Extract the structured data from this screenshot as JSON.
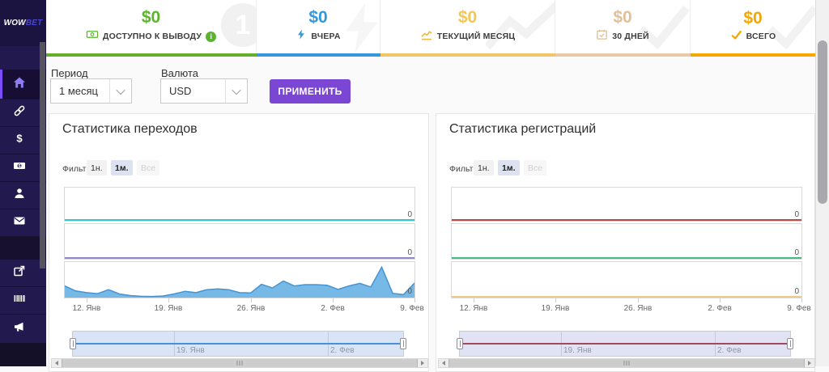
{
  "logo": {
    "primary": "WOW",
    "secondary": "BET"
  },
  "sidebar": {
    "items": [
      {
        "icon": "home-icon",
        "active": true
      },
      {
        "icon": "link-icon",
        "active": false
      },
      {
        "icon": "dollar-icon",
        "active": false
      },
      {
        "icon": "banknote-icon",
        "active": false
      },
      {
        "icon": "person-icon",
        "active": false
      },
      {
        "icon": "envelope-icon",
        "active": false
      },
      {
        "icon": "external-link-icon",
        "active": false
      },
      {
        "icon": "barcode-icon",
        "active": false
      },
      {
        "icon": "megaphone-icon",
        "active": false
      }
    ]
  },
  "topbar": {
    "cards": [
      {
        "value": "$0",
        "label": "ДОСТУПНО К ВЫВОДУ",
        "accent": "#5cb32e",
        "underline": "#66ad2b",
        "icon": "banknote-icon",
        "has_info_icon": true
      },
      {
        "value": "$0",
        "label": "ВЧЕРА",
        "accent": "#3598db",
        "underline": "#3598db",
        "icon": "bolt-icon",
        "has_info_icon": false
      },
      {
        "value": "$0",
        "label": "ТЕКУЩИЙ МЕСЯЦ",
        "accent": "#f4c654",
        "underline": "#f2c666",
        "icon": "chart-line-icon",
        "has_info_icon": false
      },
      {
        "value": "$0",
        "label": "30 ДНЕЙ",
        "accent": "#dfc09a",
        "underline": "#e8cba4",
        "icon": "calendar-check-icon",
        "has_info_icon": false
      },
      {
        "value": "$0",
        "label": "ВСЕГО",
        "accent": "#f5a700",
        "underline": "#f7a800",
        "icon": "check-icon",
        "has_info_icon": false
      }
    ]
  },
  "filters": {
    "period_label": "Период",
    "period_value": "1 месяц",
    "currency_label": "Валюта",
    "currency_value": "USD",
    "apply_label": "ПРИМЕНИТЬ"
  },
  "chart_data": [
    {
      "type": "area",
      "title": "Статистика переходов",
      "range_selector": {
        "label": "Фильтр",
        "buttons": [
          "1н.",
          "1м.",
          "Все"
        ],
        "selected": "1м.",
        "disabled": "Все"
      },
      "x_axis": {
        "tick_labels": [
          "12. Янв",
          "19. Янв",
          "26. Янв",
          "2. Фев",
          "9. Фев"
        ],
        "range": [
          "10. Янв",
          "9. Фев"
        ]
      },
      "panes": [
        {
          "name": "series-1",
          "type": "line",
          "color": "#3ac6c2",
          "y_label": "0",
          "values": [
            0
          ],
          "note": "flat line at 0"
        },
        {
          "name": "series-2",
          "type": "line",
          "color": "#9488cf",
          "y_label": "0",
          "values": [
            0
          ],
          "note": "flat line at 0"
        },
        {
          "name": "series-3",
          "type": "area",
          "color": "#5fade2",
          "y_label": "0",
          "y_scale": "relative units 0-10, axis shows only 0",
          "values": [
            3.5,
            2.0,
            1.5,
            1.2,
            2.4,
            1.1,
            0.6,
            0.4,
            0.35,
            0.5,
            1.1,
            1.9,
            1.5,
            2.4,
            2.6,
            2.4,
            1.5,
            1.4,
            4.0,
            2.9,
            5.0,
            3.5,
            3.9,
            3.9,
            3.7,
            2.5,
            3.5,
            4.3,
            3.2,
            9.2,
            1.3,
            0.9,
            4.4
          ]
        }
      ],
      "navigator": {
        "labels": [
          "19. Янв",
          "2. Фев"
        ],
        "line_color": "#4a90d9",
        "fill": "#d9e5f7"
      }
    },
    {
      "type": "line",
      "title": "Статистика регистраций",
      "range_selector": {
        "label": "Фильтр",
        "buttons": [
          "1н.",
          "1м.",
          "Все"
        ],
        "selected": "1м.",
        "disabled": "Все"
      },
      "x_axis": {
        "tick_labels": [
          "12. Янв",
          "19. Янв",
          "26. Янв",
          "2. Фев",
          "9. Фев"
        ],
        "range": [
          "10. Янв",
          "9. Фев"
        ]
      },
      "panes": [
        {
          "name": "series-1",
          "type": "line",
          "color": "#b94a48",
          "y_label": "0",
          "values": [
            0
          ],
          "note": "flat line at 0"
        },
        {
          "name": "series-2",
          "type": "line",
          "color": "#41bf84",
          "y_label": "0",
          "values": [
            0
          ],
          "note": "flat line at 0"
        },
        {
          "name": "series-3",
          "type": "line",
          "color": "#eecb81",
          "y_label": "0",
          "values": [
            0
          ],
          "note": "flat line at 0"
        }
      ],
      "navigator": {
        "labels": [
          "19. Янв",
          "2. Фев"
        ],
        "line_color": "#a04a5a",
        "fill": "#e1e3f4"
      }
    }
  ]
}
